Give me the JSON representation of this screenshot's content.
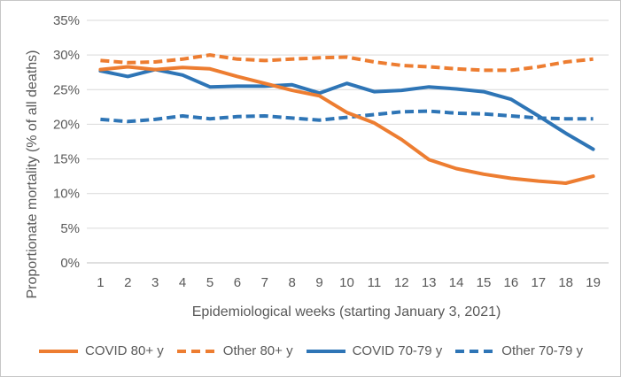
{
  "chart_data": {
    "type": "line",
    "title": "",
    "xlabel": "Epidemiological weeks (starting January 3, 2021)",
    "ylabel": "Proportionate mortality (% of all deaths)",
    "x": [
      1,
      2,
      3,
      4,
      5,
      6,
      7,
      8,
      9,
      10,
      11,
      12,
      13,
      14,
      15,
      16,
      17,
      18,
      19
    ],
    "ylim": [
      0,
      35
    ],
    "ytick_interval": 5,
    "ytick_labels": [
      "0%",
      "5%",
      "10%",
      "15%",
      "20%",
      "25%",
      "30%",
      "35%"
    ],
    "y_unit": "%",
    "grid": true,
    "legend_position": "bottom",
    "series": [
      {
        "name": "COVID 80+ y",
        "color": "#ED7D31",
        "dash": "solid",
        "values": [
          27.9,
          28.3,
          27.9,
          28.2,
          28.0,
          26.9,
          25.9,
          24.9,
          24.1,
          21.7,
          20.2,
          17.8,
          14.9,
          13.6,
          12.8,
          12.2,
          11.8,
          11.5,
          12.5
        ]
      },
      {
        "name": "Other 80+ y",
        "color": "#ED7D31",
        "dash": "dashed",
        "values": [
          29.2,
          28.9,
          29.0,
          29.4,
          30.0,
          29.4,
          29.2,
          29.4,
          29.6,
          29.7,
          29.0,
          28.5,
          28.3,
          28.0,
          27.8,
          27.8,
          28.3,
          29.0,
          29.4
        ]
      },
      {
        "name": "COVID 70-79 y",
        "color": "#2E75B6",
        "dash": "solid",
        "values": [
          27.7,
          26.9,
          27.9,
          27.1,
          25.4,
          25.5,
          25.5,
          25.7,
          24.5,
          25.9,
          24.7,
          24.9,
          25.4,
          25.1,
          24.7,
          23.6,
          21.2,
          18.7,
          16.4
        ]
      },
      {
        "name": "Other 70-79 y",
        "color": "#2E75B6",
        "dash": "dashed",
        "values": [
          20.7,
          20.4,
          20.7,
          21.2,
          20.8,
          21.1,
          21.2,
          20.9,
          20.6,
          21.0,
          21.4,
          21.8,
          21.9,
          21.6,
          21.5,
          21.2,
          20.9,
          20.8,
          20.8
        ]
      }
    ]
  },
  "figure": {
    "text_color": "#595959",
    "gridline_color": "#D9D9D9",
    "axis_line_color": "#BFBFBF",
    "border_color": "#C6C6C6",
    "background_color": "#FFFFFF",
    "accent_orange": "#ED7D31",
    "accent_blue": "#2E75B6"
  }
}
